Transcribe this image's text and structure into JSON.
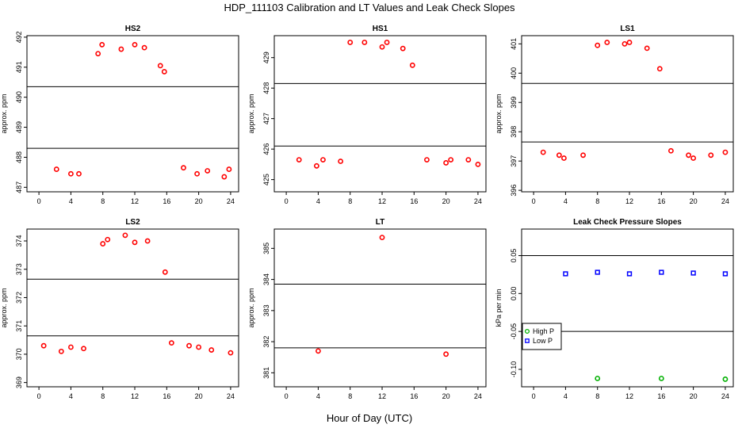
{
  "figure": {
    "title": "HDP_111103  Calibration and LT Values and Leak Check Slopes",
    "xlabel": "Hour of Day (UTC)"
  },
  "chart_data": [
    {
      "type": "scatter",
      "title": "HS2",
      "ylabel": "approx. ppm",
      "xlim": [
        -1.5,
        25
      ],
      "ylim": [
        486.85,
        492.05
      ],
      "xticks": [
        0,
        4,
        8,
        12,
        16,
        20,
        24
      ],
      "yticks": [
        487,
        488,
        489,
        490,
        491,
        492
      ],
      "hlines": [
        490.35,
        488.3
      ],
      "series": [
        {
          "color": "#ff0000",
          "marker": "circle",
          "points": [
            [
              2.2,
              487.6
            ],
            [
              4.0,
              487.45
            ],
            [
              5.0,
              487.45
            ],
            [
              7.4,
              491.45
            ],
            [
              7.9,
              491.75
            ],
            [
              10.3,
              491.6
            ],
            [
              12.0,
              491.75
            ],
            [
              13.2,
              491.65
            ],
            [
              15.2,
              491.05
            ],
            [
              15.7,
              490.85
            ],
            [
              18.1,
              487.65
            ],
            [
              19.8,
              487.45
            ],
            [
              21.1,
              487.55
            ],
            [
              23.2,
              487.35
            ],
            [
              23.8,
              487.6
            ]
          ]
        }
      ]
    },
    {
      "type": "scatter",
      "title": "HS1",
      "ylabel": "approx. ppm",
      "xlim": [
        -1.5,
        25
      ],
      "ylim": [
        424.6,
        429.72
      ],
      "xticks": [
        0,
        4,
        8,
        12,
        16,
        20,
        24
      ],
      "yticks": [
        425,
        426,
        427,
        428,
        429
      ],
      "hlines": [
        428.15,
        426.1
      ],
      "series": [
        {
          "color": "#ff0000",
          "marker": "circle",
          "points": [
            [
              1.6,
              425.65
            ],
            [
              3.8,
              425.45
            ],
            [
              4.6,
              425.65
            ],
            [
              6.8,
              425.6
            ],
            [
              8.0,
              429.5
            ],
            [
              9.8,
              429.5
            ],
            [
              12.0,
              429.35
            ],
            [
              12.6,
              429.5
            ],
            [
              14.6,
              429.3
            ],
            [
              15.8,
              428.75
            ],
            [
              17.6,
              425.65
            ],
            [
              20.0,
              425.55
            ],
            [
              20.6,
              425.65
            ],
            [
              22.8,
              425.65
            ],
            [
              24.0,
              425.5
            ]
          ]
        }
      ]
    },
    {
      "type": "scatter",
      "title": "LS1",
      "ylabel": "approx. ppm",
      "xlim": [
        -1.5,
        25
      ],
      "ylim": [
        395.95,
        401.28
      ],
      "xticks": [
        0,
        4,
        8,
        12,
        16,
        20,
        24
      ],
      "yticks": [
        396,
        397,
        398,
        399,
        400,
        401
      ],
      "hlines": [
        399.65,
        397.65
      ],
      "series": [
        {
          "color": "#ff0000",
          "marker": "circle",
          "points": [
            [
              1.2,
              397.3
            ],
            [
              3.2,
              397.2
            ],
            [
              3.8,
              397.1
            ],
            [
              6.2,
              397.2
            ],
            [
              8.0,
              400.95
            ],
            [
              9.2,
              401.05
            ],
            [
              11.4,
              401.0
            ],
            [
              12.0,
              401.05
            ],
            [
              14.2,
              400.85
            ],
            [
              15.8,
              400.15
            ],
            [
              17.2,
              397.35
            ],
            [
              19.4,
              397.2
            ],
            [
              20.0,
              397.1
            ],
            [
              22.2,
              397.2
            ],
            [
              24.0,
              397.3
            ]
          ]
        }
      ]
    },
    {
      "type": "scatter",
      "title": "LS2",
      "ylabel": "approx. ppm",
      "xlim": [
        -1.5,
        25
      ],
      "ylim": [
        368.85,
        374.42
      ],
      "xticks": [
        0,
        4,
        8,
        12,
        16,
        20,
        24
      ],
      "yticks": [
        369,
        370,
        371,
        372,
        373,
        374
      ],
      "hlines": [
        372.65,
        370.65
      ],
      "series": [
        {
          "color": "#ff0000",
          "marker": "circle",
          "points": [
            [
              0.6,
              370.3
            ],
            [
              2.8,
              370.1
            ],
            [
              4.0,
              370.25
            ],
            [
              5.6,
              370.2
            ],
            [
              8.0,
              373.9
            ],
            [
              8.6,
              374.05
            ],
            [
              10.8,
              374.2
            ],
            [
              12.0,
              373.95
            ],
            [
              13.6,
              374.0
            ],
            [
              15.8,
              372.9
            ],
            [
              16.6,
              370.4
            ],
            [
              18.8,
              370.3
            ],
            [
              20.0,
              370.25
            ],
            [
              21.6,
              370.15
            ],
            [
              24.0,
              370.05
            ]
          ]
        }
      ]
    },
    {
      "type": "scatter",
      "title": "LT",
      "ylabel": "approx. ppm",
      "xlim": [
        -1.5,
        25
      ],
      "ylim": [
        380.55,
        385.62
      ],
      "xticks": [
        0,
        4,
        8,
        12,
        16,
        20,
        24
      ],
      "yticks": [
        381,
        382,
        383,
        384,
        385
      ],
      "hlines": [
        383.85,
        381.8
      ],
      "series": [
        {
          "color": "#ff0000",
          "marker": "circle",
          "points": [
            [
              4.0,
              381.7
            ],
            [
              12.0,
              385.35
            ],
            [
              20.0,
              381.6
            ]
          ]
        }
      ]
    },
    {
      "type": "scatter",
      "title": "Leak Check Pressure Slopes",
      "ylabel": "kPa per min",
      "xlim": [
        -1.5,
        25
      ],
      "ylim": [
        -0.123,
        0.085
      ],
      "xticks": [
        0,
        4,
        8,
        12,
        16,
        20,
        24
      ],
      "yticks": [
        -0.1,
        -0.05,
        0.0,
        0.05
      ],
      "ytick_labels": [
        "-0.10",
        "-0.05",
        "0.00",
        "0.05"
      ],
      "hlines": [
        0.05,
        -0.05
      ],
      "legend": {
        "position": "bottom-left",
        "entries": [
          "High P",
          "Low P"
        ]
      },
      "series": [
        {
          "name": "High P",
          "color": "#00b000",
          "marker": "circle",
          "points": [
            [
              8,
              -0.112
            ],
            [
              16,
              -0.112
            ],
            [
              24,
              -0.113
            ]
          ]
        },
        {
          "name": "Low P",
          "color": "#0000ff",
          "marker": "square",
          "points": [
            [
              4,
              0.026
            ],
            [
              8,
              0.028
            ],
            [
              12,
              0.026
            ],
            [
              16,
              0.028
            ],
            [
              20,
              0.027
            ],
            [
              24,
              0.026
            ]
          ]
        }
      ]
    }
  ]
}
